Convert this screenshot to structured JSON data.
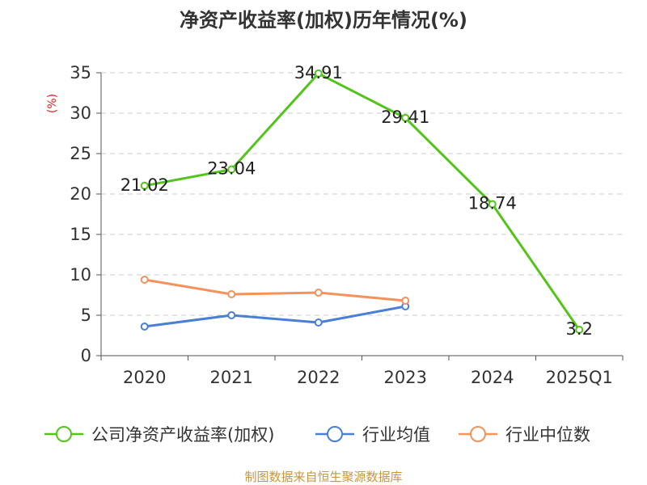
{
  "chart_data": {
    "type": "line",
    "title": "净资产收益率(加权)历年情况(%)",
    "ylabel": "(%)",
    "xlabel": "",
    "ylim": [
      0,
      35
    ],
    "yticks": [
      0,
      5,
      10,
      15,
      20,
      25,
      30,
      35
    ],
    "categories": [
      "2020",
      "2021",
      "2022",
      "2023",
      "2024",
      "2025Q1"
    ],
    "series": [
      {
        "name": "公司净资产收益率(加权)",
        "color": "#52c41a",
        "values": [
          21.02,
          23.04,
          34.91,
          29.41,
          18.74,
          3.2
        ],
        "labels": [
          "21.02",
          "23.04",
          "34.91",
          "29.41",
          "18.74",
          "3.2"
        ]
      },
      {
        "name": "行业均值",
        "color": "#4a7fd6",
        "values": [
          3.6,
          5.0,
          4.1,
          6.1,
          null,
          null
        ]
      },
      {
        "name": "行业中位数",
        "color": "#f4925b",
        "values": [
          9.4,
          7.6,
          7.8,
          6.8,
          null,
          null
        ]
      }
    ],
    "grid": true,
    "legend_position": "bottom"
  },
  "source": {
    "text": "制图数据来自恒生聚源数据库",
    "color": "#c8963c"
  }
}
